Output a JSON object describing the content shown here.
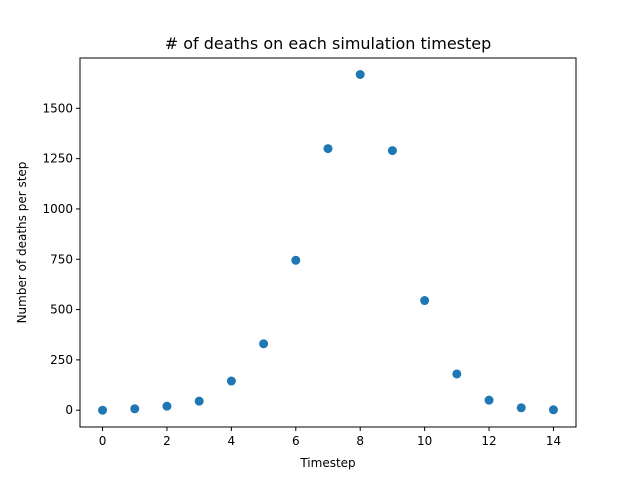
{
  "chart_data": {
    "type": "scatter",
    "title": "# of deaths on each simulation timestep",
    "xlabel": "Timestep",
    "ylabel": "Number of deaths per step",
    "xlim": [
      -0.7,
      14.7
    ],
    "ylim": [
      -83.5,
      1750
    ],
    "xticks": [
      0,
      2,
      4,
      6,
      8,
      10,
      12,
      14
    ],
    "yticks": [
      0,
      250,
      500,
      750,
      1000,
      1250,
      1500
    ],
    "grid": false,
    "marker_color": "#1f77b4",
    "series": [
      {
        "x": [
          0,
          1,
          2,
          3,
          4,
          5,
          6,
          7,
          8,
          9,
          10,
          11,
          12,
          13,
          14
        ],
        "y": [
          0,
          7,
          20,
          45,
          145,
          330,
          745,
          1300,
          1668,
          1290,
          545,
          180,
          50,
          12,
          2
        ]
      }
    ]
  }
}
